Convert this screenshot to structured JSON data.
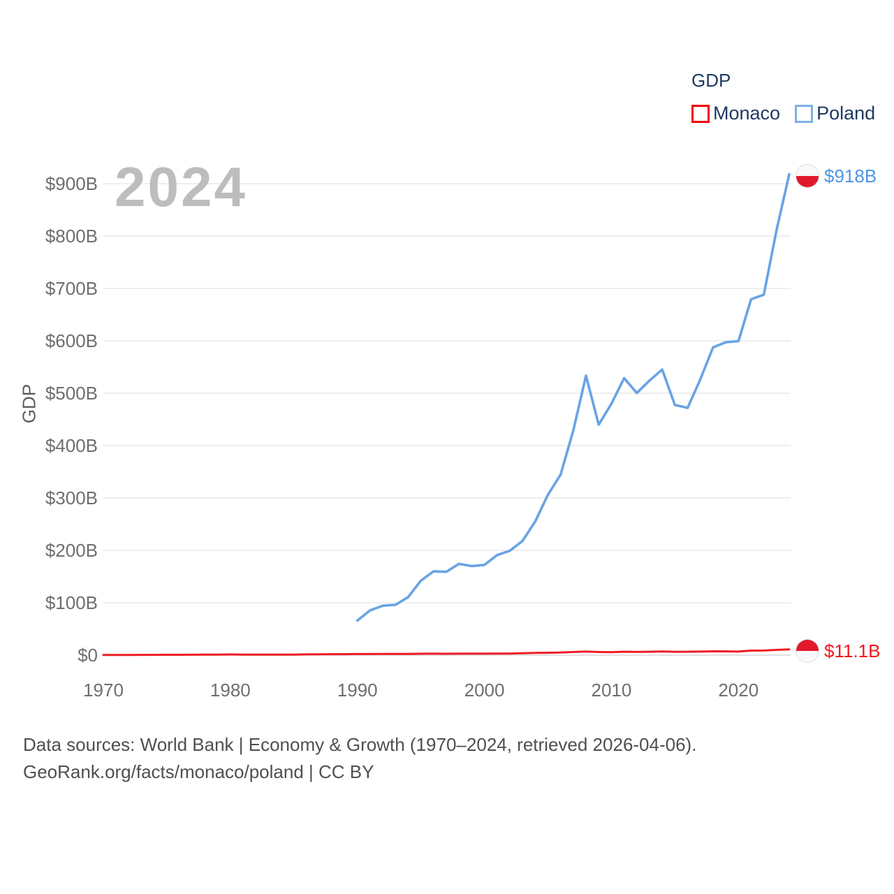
{
  "watermark": "2024",
  "legend": {
    "title": "GDP",
    "items": [
      {
        "label": "Monaco",
        "box_color": "#f20000"
      },
      {
        "label": "Poland",
        "box_color": "#7db0e8"
      }
    ]
  },
  "end_labels": {
    "poland": {
      "text": "$918B",
      "color": "#4f95e1"
    },
    "monaco": {
      "text": "$11.1B",
      "color": "#f2161e"
    }
  },
  "flags": {
    "poland": {
      "top": "#f9f9f9",
      "bottom": "#e0192c"
    },
    "monaco": {
      "top": "#e0192c",
      "bottom": "#f9f9f9"
    }
  },
  "footer": {
    "line1": "Data sources: World Bank | Economy & Growth (1970–2024, retrieved 2026-04-06).",
    "line2": "GeoRank.org/facts/monaco/poland | CC BY"
  },
  "chart_data": {
    "type": "line",
    "title": "GDP",
    "xlabel": "",
    "ylabel": "GDP",
    "units": "current US$ billions",
    "xlim": [
      1970,
      2024
    ],
    "ylim": [
      0,
      950
    ],
    "grid": true,
    "legend_position": "top-right",
    "x_ticks": [
      1970,
      1980,
      1990,
      2000,
      2010,
      2020
    ],
    "y_ticks": [
      {
        "value": 0,
        "label": "$0"
      },
      {
        "value": 100,
        "label": "$100B"
      },
      {
        "value": 200,
        "label": "$200B"
      },
      {
        "value": 300,
        "label": "$300B"
      },
      {
        "value": 400,
        "label": "$400B"
      },
      {
        "value": 500,
        "label": "$500B"
      },
      {
        "value": 600,
        "label": "$600B"
      },
      {
        "value": 700,
        "label": "$700B"
      },
      {
        "value": 800,
        "label": "$800B"
      },
      {
        "value": 900,
        "label": "$900B"
      }
    ],
    "x": [
      1970,
      1971,
      1972,
      1973,
      1974,
      1975,
      1976,
      1977,
      1978,
      1979,
      1980,
      1981,
      1982,
      1983,
      1984,
      1985,
      1986,
      1987,
      1988,
      1989,
      1990,
      1991,
      1992,
      1993,
      1994,
      1995,
      1996,
      1997,
      1998,
      1999,
      2000,
      2001,
      2002,
      2003,
      2004,
      2005,
      2006,
      2007,
      2008,
      2009,
      2010,
      2011,
      2012,
      2013,
      2014,
      2015,
      2016,
      2017,
      2018,
      2019,
      2020,
      2021,
      2022,
      2023,
      2024
    ],
    "series": [
      {
        "name": "Monaco",
        "color": "#ee1c25",
        "final_value_label": "$11.1B",
        "values": [
          0.28,
          0.32,
          0.38,
          0.49,
          0.54,
          0.68,
          0.7,
          0.75,
          0.9,
          1.1,
          1.27,
          1.12,
          1.07,
          1.02,
          0.98,
          1.02,
          1.41,
          1.72,
          1.88,
          1.89,
          2.09,
          2.12,
          2.32,
          2.23,
          2.36,
          2.72,
          2.76,
          2.68,
          2.85,
          2.85,
          2.83,
          2.89,
          3.08,
          3.78,
          4.32,
          4.49,
          4.88,
          5.97,
          6.86,
          6.02,
          5.72,
          6.52,
          6.1,
          6.55,
          7.06,
          6.26,
          6.47,
          6.78,
          7.31,
          7.22,
          6.82,
          8.6,
          8.77,
          10.03,
          11.1
        ]
      },
      {
        "name": "Poland",
        "color": "#69a3e4",
        "final_value_label": "$918B",
        "values": [
          null,
          null,
          null,
          null,
          null,
          null,
          null,
          null,
          null,
          null,
          null,
          null,
          null,
          null,
          null,
          null,
          null,
          null,
          null,
          null,
          65.98,
          85.52,
          94.34,
          96.15,
          110.77,
          142.14,
          160.09,
          159.06,
          174.26,
          170.05,
          172.22,
          190.89,
          199.18,
          218.03,
          255.1,
          306.13,
          344.83,
          429.25,
          533.64,
          439.8,
          479.83,
          528.83,
          500.36,
          524.24,
          545.16,
          477.58,
          471.98,
          526.51,
          587.41,
          597.28,
          599.44,
          679.44,
          688.18,
          811.23,
          918.0
        ]
      }
    ]
  }
}
